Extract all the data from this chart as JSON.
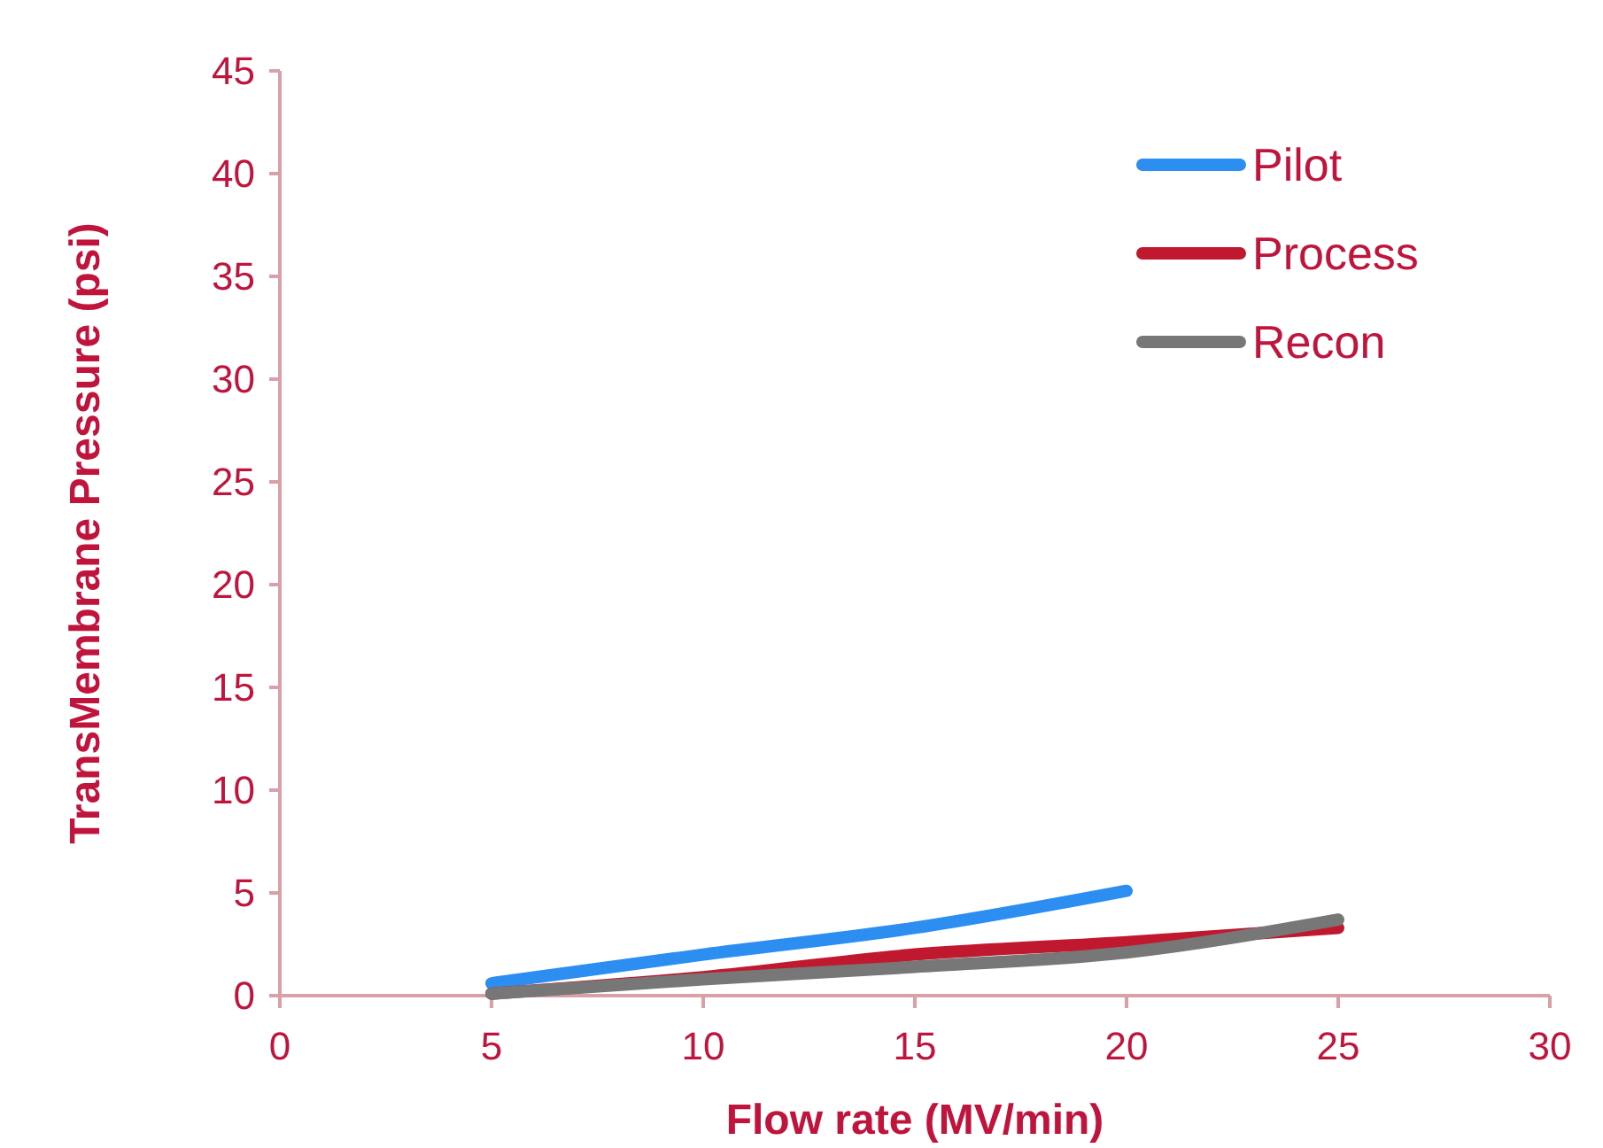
{
  "chart_data": {
    "type": "line",
    "xlabel": "Flow rate (MV/min)",
    "ylabel": "TransMembrane Pressure (psi)",
    "x": [
      5,
      10,
      15,
      20,
      25
    ],
    "series": [
      {
        "name": "Pilot",
        "color": "#2b8ef0",
        "x": [
          5,
          10,
          15,
          20
        ],
        "values": [
          0.6,
          2.0,
          3.3,
          5.1
        ]
      },
      {
        "name": "Process",
        "color": "#c0182e",
        "values": [
          0.1,
          0.9,
          2.0,
          2.6,
          3.3
        ]
      },
      {
        "name": "Recon",
        "color": "#777777",
        "values": [
          0.1,
          0.8,
          1.4,
          2.1,
          3.7
        ]
      }
    ],
    "xlim": [
      0,
      30
    ],
    "xticks": [
      0,
      5,
      10,
      15,
      20,
      25,
      30
    ],
    "ylim": [
      0,
      45
    ],
    "yticks": [
      0,
      5,
      10,
      15,
      20,
      25,
      30,
      35,
      40,
      45
    ],
    "grid": false,
    "legend": "top right",
    "marker": "none",
    "line_style": "solid"
  }
}
